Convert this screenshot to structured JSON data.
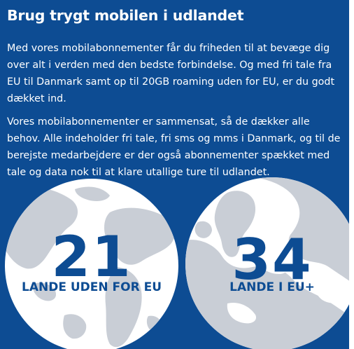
{
  "heading": "Brug trygt mobilen i udlandet",
  "paragraphs": [
    "Med vores mobilabonnementer får du friheden til at bevæge dig over alt i verden med den bedste forbindelse. Og med fri tale fra EU til Danmark samt op til 20GB roaming uden for EU, er du godt dækket ind.",
    "Vores mobilabonnementer er sammensat, så de dækker alle behov. Alle indeholder fri tale, fri sms og mms i Danmark, og til de berejste medarbejdere er der også abonnementer spækket med tale og data nok til at klare utallige ture til udlandet."
  ],
  "stats": [
    {
      "number": "21",
      "label": "LANDE UDEN FOR EU"
    },
    {
      "number": "34",
      "label": "LANDE I EU+"
    }
  ],
  "colors": {
    "background": "#0d4c93",
    "text": "#ffffff",
    "globe": "#ffffff",
    "land": "#c9ced6",
    "accent": "#0d4c93"
  }
}
